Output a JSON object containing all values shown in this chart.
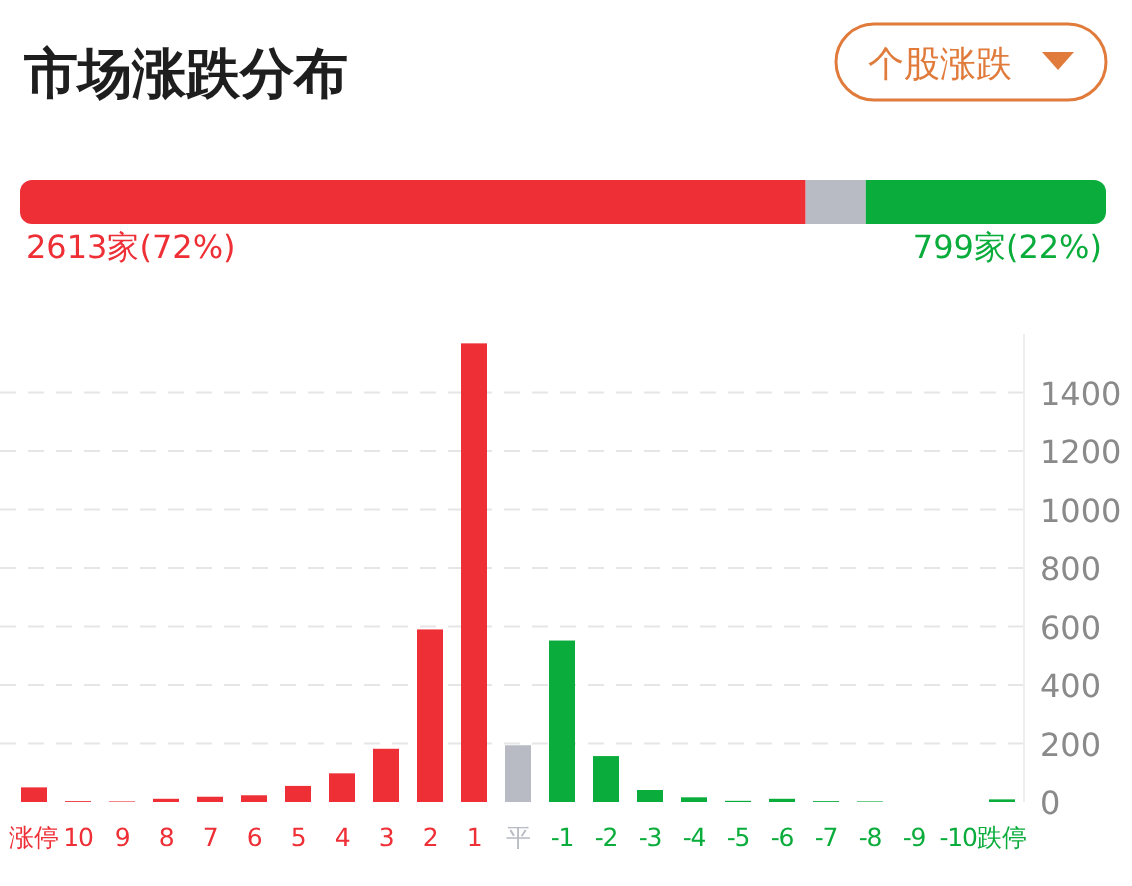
{
  "chart_data": [
    {
      "type": "bar",
      "orientation": "horizontal",
      "stacked": true,
      "title": "市场涨跌分布",
      "annotations": [
        "个股涨跌"
      ],
      "categories": [
        null
      ],
      "series": [
        {
          "color": "#ee2f36",
          "values": [
            2613
          ],
          "value_labels": [
            "2613家(72%)"
          ]
        },
        {
          "color": "#b9bbc4",
          "values": [
            200
          ],
          "value_labels": [
            null
          ]
        },
        {
          "color": "#0aac3b",
          "values": [
            799
          ],
          "value_labels": [
            "799家(22%)"
          ]
        }
      ]
    },
    {
      "type": "bar",
      "categories": [
        "涨停",
        "10",
        "9",
        "8",
        "7",
        "6",
        "5",
        "4",
        "3",
        "2",
        "1",
        "平",
        "-1",
        "-2",
        "-3",
        "-4",
        "-5",
        "-6",
        "-7",
        "-8",
        "-9",
        "-10",
        "跌停"
      ],
      "values": [
        50,
        3,
        2,
        11,
        18,
        23,
        55,
        98,
        182,
        590,
        1568,
        194,
        552,
        157,
        41,
        16,
        4,
        11,
        3,
        2,
        null,
        null,
        9
      ],
      "colors": [
        "#ee2f36",
        "#ee2f36",
        "#ee2f36",
        "#ee2f36",
        "#ee2f36",
        "#ee2f36",
        "#ee2f36",
        "#ee2f36",
        "#ee2f36",
        "#ee2f36",
        "#ee2f36",
        "#b9bbc4",
        "#0aac3b",
        "#0aac3b",
        "#0aac3b",
        "#0aac3b",
        "#0aac3b",
        "#0aac3b",
        "#0aac3b",
        "#0aac3b",
        "#0aac3b",
        "#0aac3b",
        "#0aac3b"
      ],
      "ylim": [
        0,
        1600
      ],
      "yticks": [
        0,
        200,
        400,
        600,
        800,
        1000,
        1200,
        1400
      ],
      "grid": "y"
    }
  ]
}
